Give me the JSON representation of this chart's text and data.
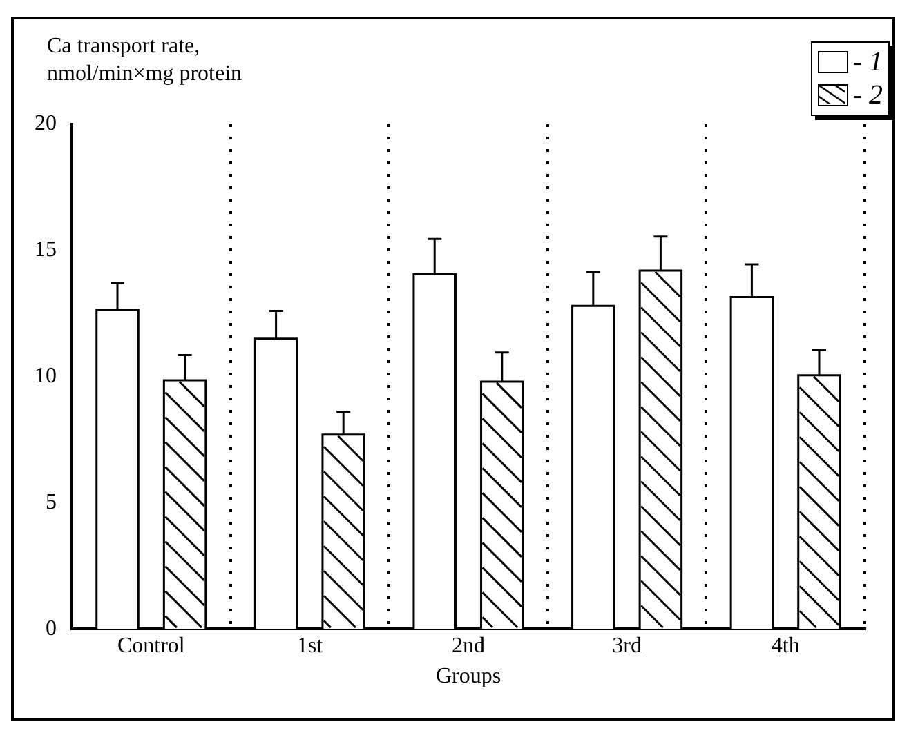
{
  "chart_data": {
    "type": "bar",
    "ylabel": "Ca transport rate, nmol/min×mg protein",
    "xlabel": "Groups",
    "categories": [
      "Control",
      "1st",
      "2nd",
      "3rd",
      "4th"
    ],
    "series": [
      {
        "name": "- 1",
        "color": "#ffffff",
        "values": [
          12.65,
          11.5,
          14.05,
          12.8,
          13.15
        ],
        "errors": [
          1.05,
          1.1,
          1.4,
          1.35,
          1.3
        ]
      },
      {
        "name": "- 2",
        "color": "#ffffff",
        "values": [
          9.85,
          7.7,
          9.8,
          14.2,
          10.05
        ],
        "errors": [
          1.0,
          0.9,
          1.15,
          1.35,
          1.0
        ]
      }
    ],
    "ylim": [
      0,
      20
    ],
    "yticks": [
      0,
      5,
      10,
      15,
      20
    ],
    "grid": "x",
    "legend": "top right"
  }
}
